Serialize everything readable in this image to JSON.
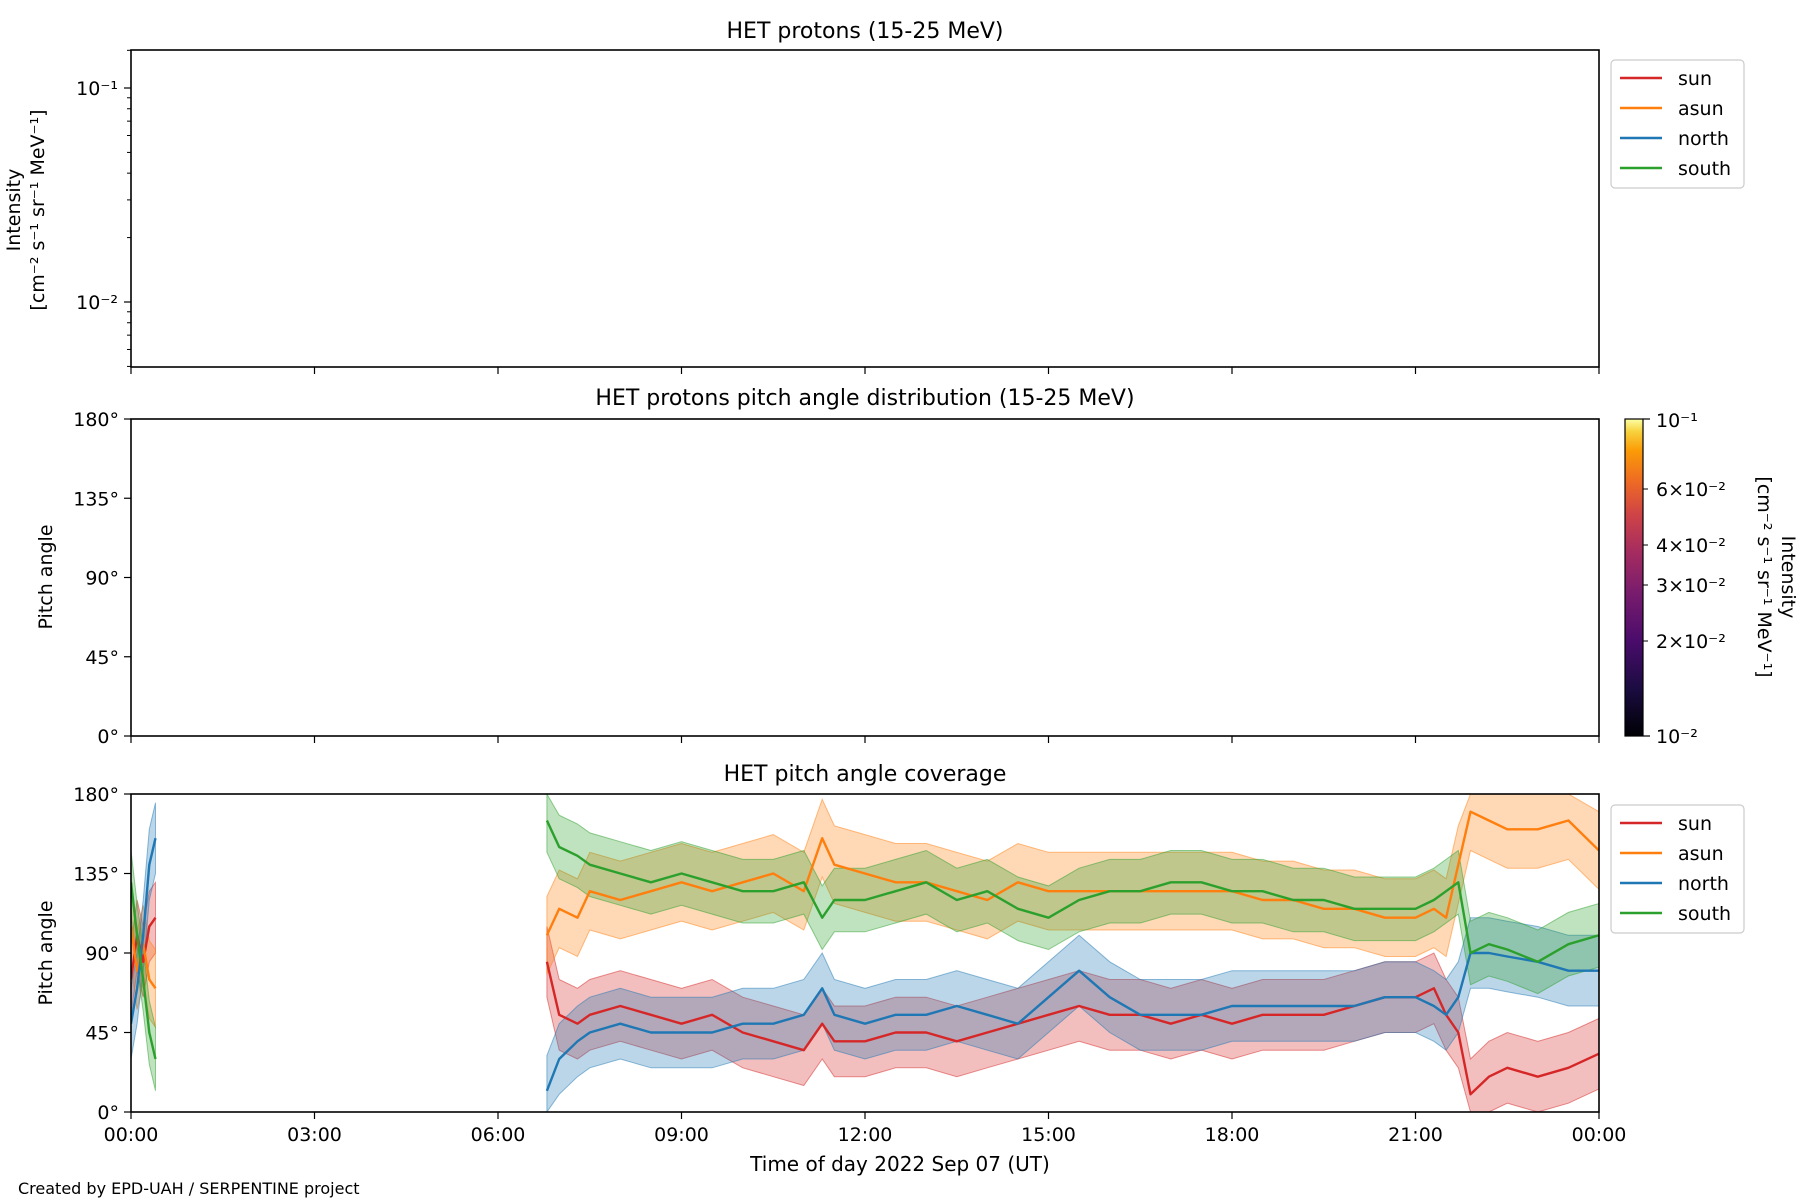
{
  "figure": {
    "credit": "Created by EPD-UAH / SERPENTINE project",
    "xlabel": "Time of day 2022 Sep 07 (UT)",
    "x_ticks": [
      "00:00",
      "03:00",
      "06:00",
      "09:00",
      "12:00",
      "15:00",
      "18:00",
      "21:00",
      "00:00"
    ]
  },
  "chart_data": [
    {
      "type": "line",
      "title": "HET protons (15-25 MeV)",
      "ylabel_line1": "Intensity",
      "ylabel_line2": "[cm⁻² s⁻¹ sr⁻¹ MeV⁻¹]",
      "yscale": "log",
      "ylim": [
        0.005,
        0.15
      ],
      "y_ticks": [
        "10⁻¹",
        "10⁻²"
      ],
      "legend": [
        "sun",
        "asun",
        "north",
        "south"
      ],
      "legend_position": "outside top-right",
      "series": [],
      "note_empty": true
    },
    {
      "type": "heatmap",
      "title": "HET protons pitch angle distribution (15-25 MeV)",
      "ylabel": "Pitch angle",
      "ylim": [
        0,
        180
      ],
      "y_ticks": [
        "180°",
        "135°",
        "90°",
        "45°",
        "0°"
      ],
      "colorbar": {
        "label_line1": "Intensity",
        "label_line2": "[cm⁻² s⁻¹ sr⁻¹ MeV⁻¹]",
        "scale": "log",
        "range": [
          0.01,
          0.1
        ],
        "ticks": [
          "10⁻¹",
          "6×10⁻²",
          "4×10⁻²",
          "3×10⁻²",
          "2×10⁻²",
          "10⁻²"
        ]
      }
    },
    {
      "type": "line",
      "title": "HET pitch angle coverage",
      "ylabel": "Pitch angle",
      "ylim": [
        0,
        180
      ],
      "y_ticks": [
        "180°",
        "135°",
        "90°",
        "45°",
        "0°"
      ],
      "x_unit": "hours since 00:00",
      "xlim": [
        0,
        24
      ],
      "legend": [
        "sun",
        "asun",
        "north",
        "south"
      ],
      "legend_position": "outside top-right",
      "colors": {
        "sun": "#d62728",
        "asun": "#ff7f0e",
        "north": "#1f77b4",
        "south": "#2ca02c"
      },
      "series": [
        {
          "name": "sun",
          "x": [
            0.0,
            0.1,
            0.2,
            0.3,
            0.4,
            6.8,
            7.0,
            7.3,
            7.5,
            8.0,
            8.5,
            9.0,
            9.5,
            10.0,
            10.5,
            11.0,
            11.3,
            11.5,
            12.0,
            12.5,
            13.0,
            13.5,
            14.0,
            14.5,
            15.0,
            15.5,
            16.0,
            16.5,
            17.0,
            17.5,
            18.0,
            18.5,
            19.0,
            19.5,
            20.0,
            20.5,
            21.0,
            21.3,
            21.5,
            21.7,
            21.9,
            22.2,
            22.5,
            23.0,
            23.5,
            24.0
          ],
          "y": [
            75,
            100,
            85,
            105,
            110,
            85,
            55,
            50,
            55,
            60,
            55,
            50,
            55,
            45,
            40,
            35,
            50,
            40,
            40,
            45,
            45,
            40,
            45,
            50,
            55,
            60,
            55,
            55,
            50,
            55,
            50,
            55,
            55,
            55,
            60,
            65,
            65,
            70,
            55,
            45,
            10,
            20,
            25,
            20,
            25,
            33
          ],
          "band_half_width": 20
        },
        {
          "name": "asun",
          "x": [
            0.0,
            0.1,
            0.2,
            0.3,
            0.4,
            6.8,
            7.0,
            7.3,
            7.5,
            8.0,
            8.5,
            9.0,
            9.5,
            10.0,
            10.5,
            11.0,
            11.3,
            11.5,
            12.0,
            12.5,
            13.0,
            13.5,
            14.0,
            14.5,
            15.0,
            15.5,
            16.0,
            16.5,
            17.0,
            17.5,
            18.0,
            18.5,
            19.0,
            19.5,
            20.0,
            20.5,
            21.0,
            21.3,
            21.5,
            21.7,
            21.9,
            22.2,
            22.5,
            23.0,
            23.5,
            24.0
          ],
          "y": [
            105,
            80,
            95,
            75,
            70,
            100,
            115,
            110,
            125,
            120,
            125,
            130,
            125,
            130,
            135,
            125,
            155,
            140,
            135,
            130,
            130,
            125,
            120,
            130,
            125,
            125,
            125,
            125,
            125,
            125,
            125,
            120,
            120,
            115,
            115,
            110,
            110,
            115,
            110,
            140,
            170,
            165,
            160,
            160,
            165,
            148
          ],
          "band_half_width": 22
        },
        {
          "name": "north",
          "x": [
            0.0,
            0.1,
            0.2,
            0.3,
            0.4,
            6.8,
            7.0,
            7.3,
            7.5,
            8.0,
            8.5,
            9.0,
            9.5,
            10.0,
            10.5,
            11.0,
            11.3,
            11.5,
            12.0,
            12.5,
            13.0,
            13.5,
            14.0,
            14.5,
            15.0,
            15.5,
            16.0,
            16.5,
            17.0,
            17.5,
            18.0,
            18.5,
            19.0,
            19.5,
            20.0,
            20.5,
            21.0,
            21.3,
            21.5,
            21.7,
            21.9,
            22.2,
            22.5,
            23.0,
            23.5,
            24.0
          ],
          "y": [
            50,
            70,
            100,
            140,
            155,
            12,
            30,
            40,
            45,
            50,
            45,
            45,
            45,
            50,
            50,
            55,
            70,
            55,
            50,
            55,
            55,
            60,
            55,
            50,
            65,
            80,
            65,
            55,
            55,
            55,
            60,
            60,
            60,
            60,
            60,
            65,
            65,
            60,
            55,
            65,
            90,
            90,
            88,
            85,
            80,
            80
          ],
          "band_half_width": 20
        },
        {
          "name": "south",
          "x": [
            0.0,
            0.1,
            0.2,
            0.3,
            0.4,
            6.8,
            7.0,
            7.3,
            7.5,
            8.0,
            8.5,
            9.0,
            9.5,
            10.0,
            10.5,
            11.0,
            11.3,
            11.5,
            12.0,
            12.5,
            13.0,
            13.5,
            14.0,
            14.5,
            15.0,
            15.5,
            16.0,
            16.5,
            17.0,
            17.5,
            18.0,
            18.5,
            19.0,
            19.5,
            20.0,
            20.5,
            21.0,
            21.3,
            21.5,
            21.7,
            21.9,
            22.2,
            22.5,
            23.0,
            23.5,
            24.0
          ],
          "y": [
            130,
            100,
            75,
            45,
            30,
            165,
            150,
            145,
            140,
            135,
            130,
            135,
            130,
            125,
            125,
            130,
            110,
            120,
            120,
            125,
            130,
            120,
            125,
            115,
            110,
            120,
            125,
            125,
            130,
            130,
            125,
            125,
            120,
            120,
            115,
            115,
            115,
            120,
            125,
            130,
            90,
            95,
            92,
            85,
            95,
            100
          ],
          "band_half_width": 18
        }
      ]
    }
  ]
}
